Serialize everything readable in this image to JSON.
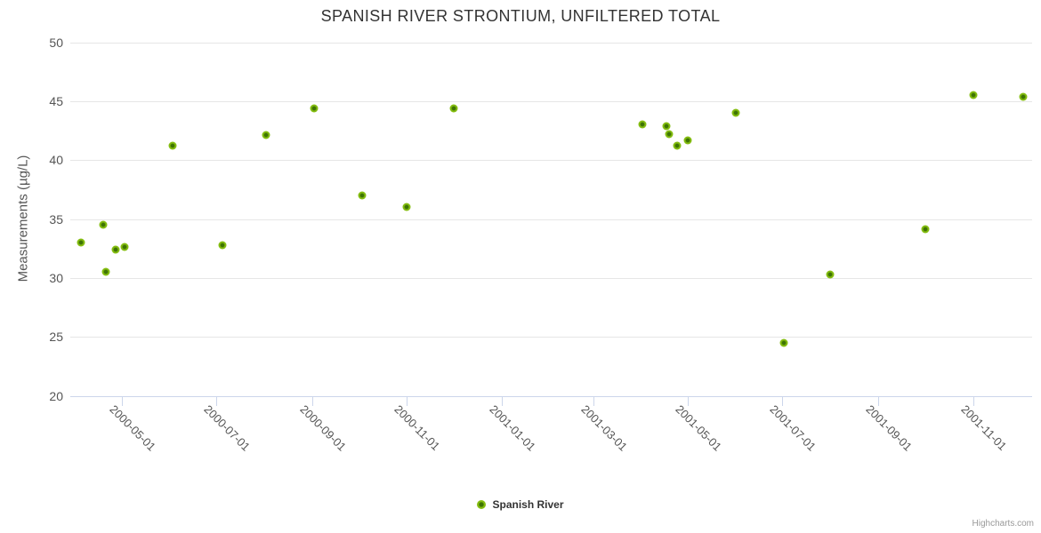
{
  "title": "SPANISH RIVER STRONTIUM, UNFILTERED TOTAL",
  "legend": {
    "label": "Spanish River"
  },
  "credits": "Highcharts.com",
  "colors": {
    "point_outer": "#84bd10",
    "point_inner": "#3e7404",
    "grid": "#e6e6e6",
    "axis_line": "#ccd6eb",
    "title_text": "#333333",
    "label_text": "#555555",
    "credits_text": "#999999"
  },
  "chart_data": {
    "type": "scatter",
    "title": "SPANISH RIVER STRONTIUM, UNFILTERED TOTAL",
    "xlabel": "",
    "ylabel": "Measurements (µg/L)",
    "ylim": [
      20,
      50
    ],
    "y_ticks": [
      20,
      25,
      30,
      35,
      40,
      45,
      50
    ],
    "x_ticks": [
      "2000-05-01",
      "2000-07-01",
      "2000-09-01",
      "2000-11-01",
      "2001-01-01",
      "2001-03-01",
      "2001-05-01",
      "2001-07-01",
      "2001-09-01",
      "2001-11-01"
    ],
    "x_range": [
      "2000-03-29",
      "2001-12-09"
    ],
    "grid": true,
    "legend_position": "bottom-center",
    "series": [
      {
        "name": "Spanish River",
        "points": [
          {
            "x": "2000-04-05",
            "y": 33.0
          },
          {
            "x": "2000-04-19",
            "y": 34.5
          },
          {
            "x": "2000-04-21",
            "y": 30.5
          },
          {
            "x": "2000-04-27",
            "y": 32.4
          },
          {
            "x": "2000-05-03",
            "y": 32.6
          },
          {
            "x": "2000-06-03",
            "y": 41.2
          },
          {
            "x": "2000-07-05",
            "y": 32.8
          },
          {
            "x": "2000-08-02",
            "y": 42.1
          },
          {
            "x": "2000-09-02",
            "y": 44.4
          },
          {
            "x": "2000-10-03",
            "y": 37.0
          },
          {
            "x": "2000-11-01",
            "y": 36.0
          },
          {
            "x": "2000-12-01",
            "y": 44.4
          },
          {
            "x": "2001-04-02",
            "y": 43.0
          },
          {
            "x": "2001-04-17",
            "y": 42.9
          },
          {
            "x": "2001-04-19",
            "y": 42.2
          },
          {
            "x": "2001-04-24",
            "y": 41.2
          },
          {
            "x": "2001-05-01",
            "y": 41.7
          },
          {
            "x": "2001-06-01",
            "y": 44.0
          },
          {
            "x": "2001-07-02",
            "y": 24.5
          },
          {
            "x": "2001-08-01",
            "y": 30.3
          },
          {
            "x": "2001-10-01",
            "y": 34.1
          },
          {
            "x": "2001-11-01",
            "y": 45.5
          },
          {
            "x": "2001-12-03",
            "y": 45.4
          }
        ]
      }
    ]
  }
}
